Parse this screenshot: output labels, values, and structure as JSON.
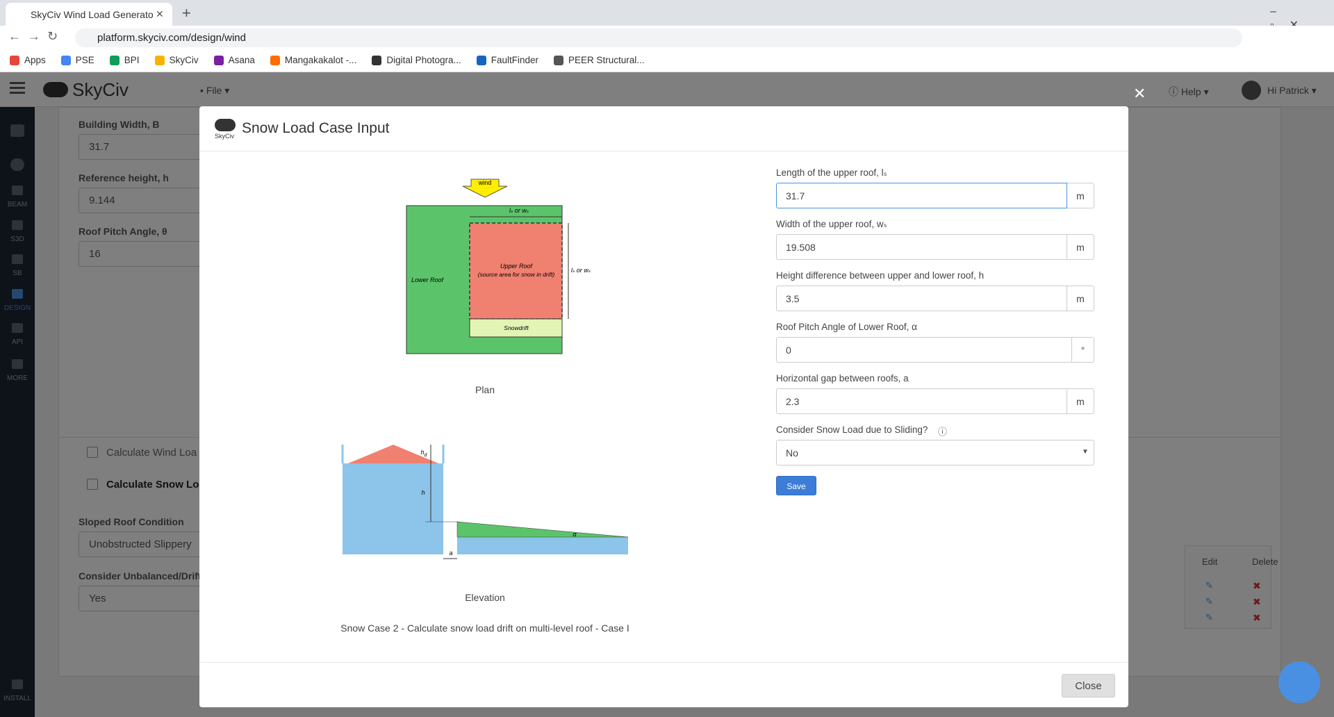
{
  "browser": {
    "tab_title": "SkyCiv Wind Load Generato",
    "url": "platform.skyciv.com/design/wind",
    "bookmarks": [
      "Apps",
      "PSE",
      "BPI",
      "SkyCiv",
      "Asana",
      "Mangakakalot -...",
      "Digital Photogra...",
      "FaultFinder",
      "PEER Structural..."
    ]
  },
  "app": {
    "logo": "SkyCiv",
    "menu": "File",
    "help": "Help",
    "user": "Hi Patrick",
    "sidebar": [
      "BEAM",
      "S3D",
      "SB",
      "DESIGN",
      "API",
      "MORE",
      "INSTALL"
    ]
  },
  "background": {
    "fields": [
      {
        "label": "Building Width, B",
        "value": "31.7"
      },
      {
        "label": "Reference height, h",
        "value": "9.144"
      },
      {
        "label": "Roof Pitch Angle, θ",
        "value": "16"
      }
    ],
    "sections": [
      "Calculate Wind Loa",
      "Calculate Snow Loa"
    ],
    "snow_fields": [
      {
        "label": "Sloped Roof Condition",
        "value": "Unobstructed Slippery"
      },
      {
        "label": "Consider Unbalanced/Drifte",
        "value": "Yes"
      }
    ],
    "table_headers": [
      "Edit",
      "Delete"
    ]
  },
  "modal": {
    "logo": "SkyCiv",
    "title": "Snow Load Case Input",
    "fields": [
      {
        "label": "Length of the upper roof, lₛ",
        "value": "31.7",
        "unit": "m"
      },
      {
        "label": "Width of the upper roof, wₛ",
        "value": "19.508",
        "unit": "m"
      },
      {
        "label": "Height difference between upper and lower roof, h",
        "value": "3.5",
        "unit": "m"
      },
      {
        "label": "Roof Pitch Angle of Lower Roof, α",
        "value": "0",
        "unit": "°"
      },
      {
        "label": "Horizontal gap between roofs, a",
        "value": "2.3",
        "unit": "m"
      }
    ],
    "sliding": {
      "label": "Consider Snow Load due to Sliding?",
      "value": "No"
    },
    "save": "Save",
    "close": "Close"
  },
  "diagram": {
    "wind": "wind",
    "dim_top": "lₛ or wₛ",
    "dim_side": "lₛ or wₛ",
    "upper_roof": "Upper Roof",
    "upper_roof_note": "(source area for snow in drift)",
    "lower_roof": "Lower Roof",
    "snowdrift": "Snowdrift",
    "plan_caption": "Plan",
    "hd": "h",
    "hd_sub": "d",
    "h": "h",
    "a": "a",
    "alpha": "α",
    "elevation_caption": "Elevation",
    "description": "Snow Case 2 - Calculate snow load drift on multi-level roof - Case I"
  }
}
